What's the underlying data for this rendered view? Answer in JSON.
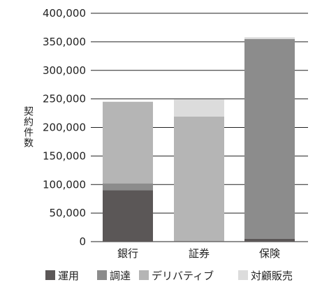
{
  "chart_data": {
    "type": "bar",
    "stacked": true,
    "ylabel": "契約件数",
    "xlabel": "",
    "ylim": [
      0,
      400000
    ],
    "yticks": [
      0,
      50000,
      100000,
      150000,
      200000,
      250000,
      300000,
      350000,
      400000
    ],
    "ytick_labels": [
      "0",
      "50,000",
      "100,000",
      "150,000",
      "200,000",
      "250,000",
      "300,000",
      "350,000",
      "400,000"
    ],
    "categories": [
      "銀行",
      "証券",
      "保険"
    ],
    "grid": "horizontal",
    "legend_position": "bottom",
    "series": [
      {
        "name": "運用",
        "color": "#5b5757",
        "values": [
          90000,
          1000,
          5000
        ]
      },
      {
        "name": "調達",
        "color": "#8c8c8c",
        "values": [
          12000,
          0,
          350000
        ]
      },
      {
        "name": "デリバティブ",
        "color": "#b5b5b5",
        "values": [
          143000,
          218000,
          0
        ]
      },
      {
        "name": "対顧販売",
        "color": "#dcdcdc",
        "values": [
          0,
          30000,
          3000
        ]
      }
    ]
  }
}
